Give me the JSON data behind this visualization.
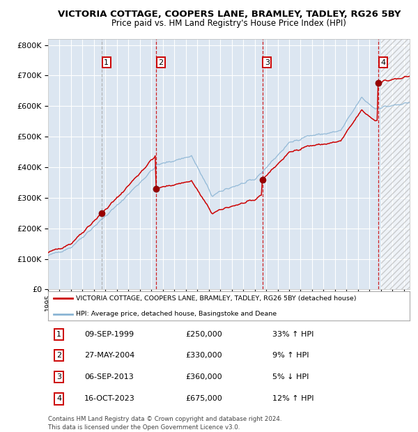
{
  "title": "VICTORIA COTTAGE, COOPERS LANE, BRAMLEY, TADLEY, RG26 5BY",
  "subtitle": "Price paid vs. HM Land Registry's House Price Index (HPI)",
  "sales": [
    {
      "date": "09-SEP-1999",
      "price": 250000,
      "label": "1",
      "hpi_pct": "33% ↑ HPI"
    },
    {
      "date": "27-MAY-2004",
      "price": 330000,
      "label": "2",
      "hpi_pct": "9% ↑ HPI"
    },
    {
      "date": "06-SEP-2013",
      "price": 360000,
      "label": "3",
      "hpi_pct": "5% ↓ HPI"
    },
    {
      "date": "16-OCT-2023",
      "price": 675000,
      "label": "4",
      "hpi_pct": "12% ↑ HPI"
    }
  ],
  "sale_dates_decimal": [
    1999.69,
    2004.41,
    2013.69,
    2023.79
  ],
  "sale_prices": [
    250000,
    330000,
    360000,
    675000
  ],
  "yticks": [
    0,
    100000,
    200000,
    300000,
    400000,
    500000,
    600000,
    700000,
    800000
  ],
  "x_start": 1995.0,
  "x_end": 2026.5,
  "hatch_start": 2024.0,
  "ylim_max": 820000,
  "x_ticks": [
    1995,
    1996,
    1997,
    1998,
    1999,
    2000,
    2001,
    2002,
    2003,
    2004,
    2005,
    2006,
    2007,
    2008,
    2009,
    2010,
    2011,
    2012,
    2013,
    2014,
    2015,
    2016,
    2017,
    2018,
    2019,
    2020,
    2021,
    2022,
    2023,
    2024,
    2025,
    2026
  ],
  "hpi_color": "#8ab4d4",
  "price_color": "#cc0000",
  "dot_color": "#990000",
  "plot_bg": "#dce6f1",
  "grid_color": "#ffffff",
  "vline1_color": "#aaaaaa",
  "vline_color": "#cc0000",
  "legend_label_red": "VICTORIA COTTAGE, COOPERS LANE, BRAMLEY, TADLEY, RG26 5BY (detached house)",
  "legend_label_blue": "HPI: Average price, detached house, Basingstoke and Deane",
  "footer": "Contains HM Land Registry data © Crown copyright and database right 2024.\nThis data is licensed under the Open Government Licence v3.0."
}
